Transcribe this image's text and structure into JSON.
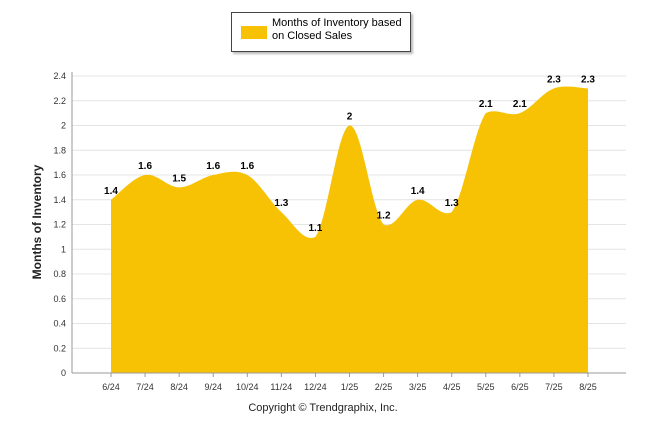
{
  "chart_data": {
    "type": "area",
    "categories": [
      "6/24",
      "7/24",
      "8/24",
      "9/24",
      "10/24",
      "11/24",
      "12/24",
      "1/25",
      "2/25",
      "3/25",
      "4/25",
      "5/25",
      "6/25",
      "7/25",
      "8/25"
    ],
    "series": [
      {
        "name": "Months of Inventory based on Closed Sales",
        "values": [
          1.4,
          1.6,
          1.5,
          1.6,
          1.6,
          1.3,
          1.1,
          2,
          1.2,
          1.4,
          1.3,
          2.1,
          2.1,
          2.3,
          2.3
        ]
      }
    ],
    "data_labels": [
      "1.4",
      "1.6",
      "1.5",
      "1.6",
      "1.6",
      "1.3",
      "1.1",
      "2",
      "1.2",
      "1.4",
      "1.3",
      "2.1",
      "2.1",
      "2.3",
      "2.3"
    ],
    "ylabel": "Months of Inventory",
    "ylim": [
      0,
      2.4
    ],
    "yticks": [
      "0",
      "0.2",
      "0.4",
      "0.6",
      "0.8",
      "1",
      "1.2",
      "1.4",
      "1.6",
      "1.8",
      "2",
      "2.2",
      "2.4"
    ],
    "grid": true,
    "legend_position": "top-center",
    "colors": {
      "fill": "#f7c204",
      "grid": "#e4e4e4",
      "axis": "#999999"
    }
  },
  "legend": {
    "label": "Months of Inventory based on Closed Sales"
  },
  "footer": {
    "credit": "Copyright © Trendgraphix, Inc."
  }
}
